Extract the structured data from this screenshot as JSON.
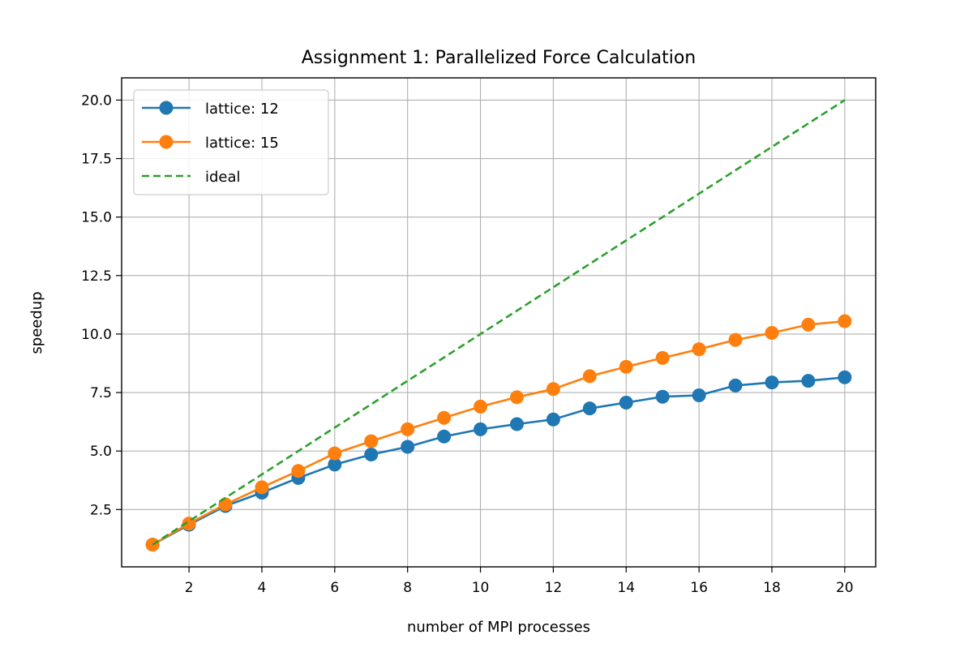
{
  "chart_data": {
    "type": "line",
    "title": "Assignment 1: Parallelized Force Calculation",
    "xlabel": "number of MPI processes",
    "ylabel": "speedup",
    "xlim": [
      0.15,
      20.85
    ],
    "ylim": [
      0.05,
      20.95
    ],
    "x_ticks": [
      2,
      4,
      6,
      8,
      10,
      12,
      14,
      16,
      18,
      20
    ],
    "y_ticks": [
      2.5,
      5.0,
      7.5,
      10.0,
      12.5,
      15.0,
      17.5,
      20.0
    ],
    "x_tick_labels": [
      "2",
      "4",
      "6",
      "8",
      "10",
      "12",
      "14",
      "16",
      "18",
      "20"
    ],
    "y_tick_labels": [
      "2.5",
      "5.0",
      "7.5",
      "10.0",
      "12.5",
      "15.0",
      "17.5",
      "20.0"
    ],
    "grid": true,
    "legend_position": "top-left",
    "x": [
      1,
      2,
      3,
      4,
      5,
      6,
      7,
      8,
      9,
      10,
      11,
      12,
      13,
      14,
      15,
      16,
      17,
      18,
      19,
      20
    ],
    "series": [
      {
        "name": "lattice: 12",
        "style": "solid-marker",
        "color": "#1f77b4",
        "values": [
          1.0,
          1.85,
          2.65,
          3.22,
          3.85,
          4.42,
          4.85,
          5.18,
          5.62,
          5.93,
          6.15,
          6.35,
          6.82,
          7.07,
          7.32,
          7.38,
          7.8,
          7.93,
          8.0,
          8.15
        ]
      },
      {
        "name": "lattice: 15",
        "style": "solid-marker",
        "color": "#ff7f0e",
        "values": [
          1.0,
          1.9,
          2.72,
          3.45,
          4.15,
          4.9,
          5.42,
          5.93,
          6.42,
          6.9,
          7.3,
          7.65,
          8.2,
          8.6,
          8.98,
          9.35,
          9.75,
          10.05,
          10.4,
          10.55
        ]
      },
      {
        "name": "ideal",
        "style": "dashed",
        "color": "#2ca02c",
        "values": [
          1,
          2,
          3,
          4,
          5,
          6,
          7,
          8,
          9,
          10,
          11,
          12,
          13,
          14,
          15,
          16,
          17,
          18,
          19,
          20
        ]
      }
    ]
  }
}
